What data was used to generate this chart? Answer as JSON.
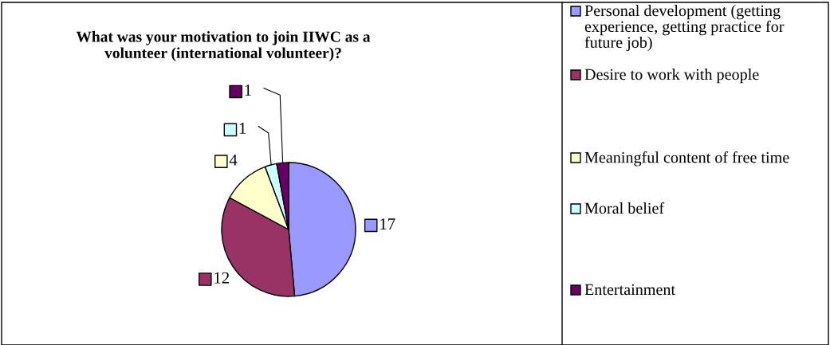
{
  "chart_data": {
    "type": "pie",
    "title": "What was your motivation to join IIWC as a volunteer (international volunteer)?",
    "categories": [
      "Personal development (getting experience, getting practice for future job)",
      "Desire to work with people",
      "Meaningful content of free time",
      "Moral belief",
      "Entertainment"
    ],
    "values": [
      17,
      12,
      4,
      1,
      1
    ],
    "colors": [
      "#9999ff",
      "#993366",
      "#ffffcc",
      "#ccffff",
      "#660066"
    ],
    "data_labels": true,
    "legend": "right"
  }
}
